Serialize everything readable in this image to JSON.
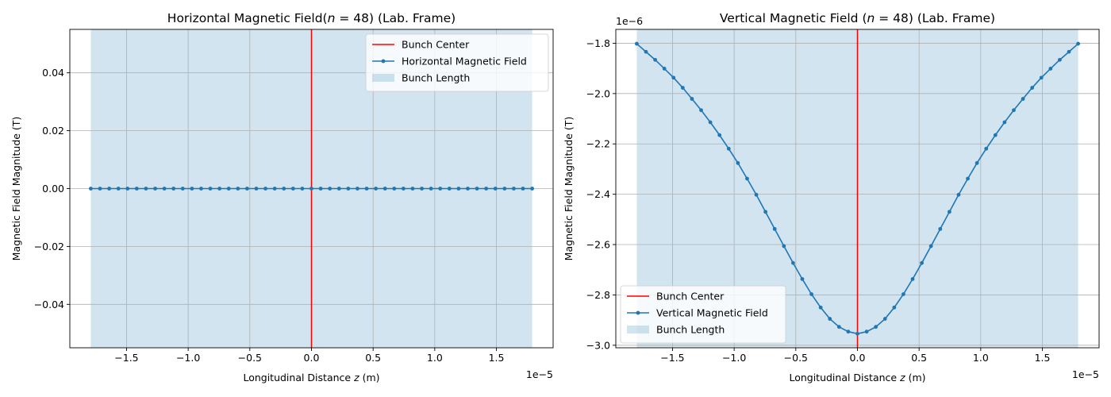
{
  "colors": {
    "series": "#1f77b4",
    "center_line": "#ff0000",
    "bunch_fill": "#1f77b4",
    "grid": "#b0b0b0",
    "axes": "#000000"
  },
  "chart_data": [
    {
      "type": "line",
      "title_prefix": "Horizontal Magnetic Field(",
      "title_var": "n",
      "title_suffix": " = 48) (Lab. Frame)",
      "xlabel_prefix": "Longitudinal Distance ",
      "xlabel_var": "z",
      "xlabel_suffix": " (m)",
      "ylabel": "Magnetic Field Magnitude (T)",
      "x_offset_text": "1e−5",
      "y_offset_text": "",
      "x_scale": 1e-05,
      "y_scale": 1,
      "xlim": [
        -1.96e-05,
        1.96e-05
      ],
      "ylim": [
        -0.055,
        0.055
      ],
      "x_ticks": [
        -1.5e-05,
        -1e-05,
        -5e-06,
        0,
        5e-06,
        1e-05,
        1.5e-05
      ],
      "x_tick_labels": [
        "−1.5",
        "−1.0",
        "−0.5",
        "0.0",
        "0.5",
        "1.0",
        "1.5"
      ],
      "y_ticks": [
        -0.04,
        -0.02,
        0.0,
        0.02,
        0.04
      ],
      "y_tick_labels": [
        "−0.04",
        "−0.02",
        "0.00",
        "0.02",
        "0.04"
      ],
      "grid": true,
      "legend_position": "upper right",
      "legend": [
        {
          "kind": "line",
          "label": "Bunch Center"
        },
        {
          "kind": "marker-line",
          "label": "Horizontal Magnetic Field"
        },
        {
          "kind": "patch",
          "label": "Bunch Length"
        }
      ],
      "bunch_center": 0,
      "bunch_span": [
        -1.79e-05,
        1.79e-05
      ],
      "series": [
        {
          "name": "Horizontal Magnetic Field",
          "x_range": [
            -1.79e-05,
            1.79e-05
          ],
          "n_points": 49,
          "y": [
            0,
            0,
            0,
            0,
            0,
            0,
            0,
            0,
            0,
            0,
            0,
            0,
            0,
            0,
            0,
            0,
            0,
            0,
            0,
            0,
            0,
            0,
            0,
            0,
            0,
            0,
            0,
            0,
            0,
            0,
            0,
            0,
            0,
            0,
            0,
            0,
            0,
            0,
            0,
            0,
            0,
            0,
            0,
            0,
            0,
            0,
            0,
            0,
            0
          ]
        }
      ]
    },
    {
      "type": "line",
      "title_prefix": "Vertical Magnetic Field (",
      "title_var": "n",
      "title_suffix": " = 48) (Lab. Frame)",
      "xlabel_prefix": "Longitudinal Distance ",
      "xlabel_var": "z",
      "xlabel_suffix": " (m)",
      "ylabel": "Magnetic Field Magnitude (T)",
      "x_offset_text": "1e−5",
      "y_offset_text": "1e−6",
      "x_scale": 1e-05,
      "y_scale": 1e-06,
      "xlim": [
        -1.96e-05,
        1.96e-05
      ],
      "ylim": [
        -3.01e-06,
        -1.745e-06
      ],
      "x_ticks": [
        -1.5e-05,
        -1e-05,
        -5e-06,
        0,
        5e-06,
        1e-05,
        1.5e-05
      ],
      "x_tick_labels": [
        "−1.5",
        "−1.0",
        "−0.5",
        "0.0",
        "0.5",
        "1.0",
        "1.5"
      ],
      "y_ticks": [
        -3e-06,
        -2.8e-06,
        -2.6e-06,
        -2.4e-06,
        -2.2e-06,
        -2e-06,
        -1.8e-06
      ],
      "y_tick_labels": [
        "−3.0",
        "−2.8",
        "−2.6",
        "−2.4",
        "−2.2",
        "−2.0",
        "−1.8"
      ],
      "grid": true,
      "legend_position": "lower left",
      "legend": [
        {
          "kind": "line",
          "label": "Bunch Center"
        },
        {
          "kind": "marker-line",
          "label": "Vertical Magnetic Field"
        },
        {
          "kind": "patch",
          "label": "Bunch Length"
        }
      ],
      "bunch_center": 0,
      "bunch_span": [
        -1.79e-05,
        1.79e-05
      ],
      "series": [
        {
          "name": "Vertical Magnetic Field",
          "x_range": [
            -1.79e-05,
            1.79e-05
          ],
          "n_points": 49,
          "y": [
            -1.802e-06,
            -1.834e-06,
            -1.866e-06,
            -1.901e-06,
            -1.937e-06,
            -1.977e-06,
            -2.021e-06,
            -2.066e-06,
            -2.114e-06,
            -2.165e-06,
            -2.219e-06,
            -2.276e-06,
            -2.338e-06,
            -2.402e-06,
            -2.47e-06,
            -2.538e-06,
            -2.606e-06,
            -2.673e-06,
            -2.737e-06,
            -2.797e-06,
            -2.85e-06,
            -2.895e-06,
            -2.927e-06,
            -2.946e-06,
            -2.954e-06,
            -2.946e-06,
            -2.927e-06,
            -2.895e-06,
            -2.85e-06,
            -2.797e-06,
            -2.737e-06,
            -2.673e-06,
            -2.606e-06,
            -2.538e-06,
            -2.47e-06,
            -2.402e-06,
            -2.338e-06,
            -2.276e-06,
            -2.219e-06,
            -2.165e-06,
            -2.114e-06,
            -2.066e-06,
            -2.021e-06,
            -1.977e-06,
            -1.937e-06,
            -1.901e-06,
            -1.866e-06,
            -1.834e-06,
            -1.802e-06
          ]
        }
      ]
    }
  ]
}
